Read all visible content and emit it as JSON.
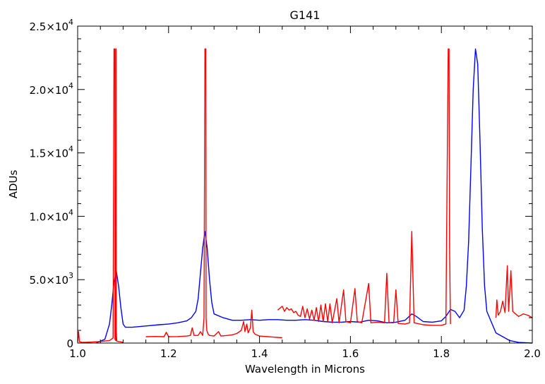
{
  "chart_data": {
    "type": "line",
    "title": "G141",
    "xlabel": "Wavelength in Microns",
    "ylabel": "ADUs",
    "xlim": [
      1.0,
      2.0
    ],
    "ylim": [
      0,
      25000
    ],
    "grid": false,
    "legend": "none",
    "x_ticks": [
      {
        "value": 1.0,
        "label": "1.0"
      },
      {
        "value": 1.2,
        "label": "1.2"
      },
      {
        "value": 1.4,
        "label": "1.4"
      },
      {
        "value": 1.6,
        "label": "1.6"
      },
      {
        "value": 1.8,
        "label": "1.8"
      },
      {
        "value": 2.0,
        "label": "2.0"
      }
    ],
    "y_ticks": [
      {
        "value": 0,
        "label": "0"
      },
      {
        "value": 5000,
        "mantissa": "5.0",
        "base": "×10",
        "exp": "3"
      },
      {
        "value": 10000,
        "mantissa": "1.0",
        "base": "×10",
        "exp": "4"
      },
      {
        "value": 15000,
        "mantissa": "1.5",
        "base": "×10",
        "exp": "4"
      },
      {
        "value": 20000,
        "mantissa": "2.0",
        "base": "×10",
        "exp": "4"
      },
      {
        "value": 25000,
        "mantissa": "2.5",
        "base": "×10",
        "exp": "4"
      }
    ],
    "series": [
      {
        "color": "#0000ff",
        "points": [
          [
            1.04,
            0
          ],
          [
            1.06,
            300
          ],
          [
            1.07,
            1500
          ],
          [
            1.075,
            3000
          ],
          [
            1.08,
            4800
          ],
          [
            1.085,
            5700
          ],
          [
            1.09,
            4500
          ],
          [
            1.095,
            2800
          ],
          [
            1.1,
            1500
          ],
          [
            1.105,
            1250
          ],
          [
            1.12,
            1250
          ],
          [
            1.15,
            1350
          ],
          [
            1.18,
            1450
          ],
          [
            1.2,
            1500
          ],
          [
            1.22,
            1600
          ],
          [
            1.24,
            1750
          ],
          [
            1.25,
            2000
          ],
          [
            1.26,
            2500
          ],
          [
            1.265,
            3500
          ],
          [
            1.27,
            5500
          ],
          [
            1.275,
            7500
          ],
          [
            1.28,
            8800
          ],
          [
            1.285,
            7500
          ],
          [
            1.29,
            5000
          ],
          [
            1.295,
            3200
          ],
          [
            1.3,
            2300
          ],
          [
            1.32,
            2000
          ],
          [
            1.34,
            1800
          ],
          [
            1.36,
            1800
          ],
          [
            1.38,
            1850
          ],
          [
            1.4,
            1800
          ],
          [
            1.42,
            1850
          ],
          [
            1.44,
            1850
          ],
          [
            1.46,
            1800
          ],
          [
            1.48,
            1800
          ],
          [
            1.5,
            1850
          ],
          [
            1.52,
            1800
          ],
          [
            1.54,
            1700
          ],
          [
            1.56,
            1650
          ],
          [
            1.58,
            1650
          ],
          [
            1.6,
            1700
          ],
          [
            1.62,
            1650
          ],
          [
            1.64,
            1800
          ],
          [
            1.66,
            1750
          ],
          [
            1.68,
            1600
          ],
          [
            1.7,
            1650
          ],
          [
            1.72,
            1800
          ],
          [
            1.735,
            2300
          ],
          [
            1.745,
            2100
          ],
          [
            1.76,
            1700
          ],
          [
            1.78,
            1650
          ],
          [
            1.8,
            1750
          ],
          [
            1.81,
            2100
          ],
          [
            1.82,
            2650
          ],
          [
            1.83,
            2500
          ],
          [
            1.84,
            2000
          ],
          [
            1.85,
            2600
          ],
          [
            1.855,
            4500
          ],
          [
            1.86,
            8000
          ],
          [
            1.865,
            14000
          ],
          [
            1.87,
            20000
          ],
          [
            1.875,
            23200
          ],
          [
            1.88,
            22000
          ],
          [
            1.885,
            16000
          ],
          [
            1.89,
            9000
          ],
          [
            1.895,
            4500
          ],
          [
            1.9,
            2500
          ],
          [
            1.92,
            800
          ],
          [
            1.95,
            200
          ],
          [
            1.97,
            50
          ],
          [
            2.0,
            0
          ]
        ]
      },
      {
        "color": "#ff0000",
        "points": [
          [
            1.0,
            100
          ],
          [
            1.002,
            900
          ],
          [
            1.004,
            100
          ],
          [
            1.01,
            50
          ],
          [
            1.03,
            80
          ],
          [
            1.05,
            120
          ],
          [
            1.07,
            200
          ],
          [
            1.078,
            400
          ],
          [
            1.08,
            23200
          ],
          [
            1.082,
            23200
          ],
          [
            1.0822,
            300
          ],
          [
            1.084,
            200
          ],
          [
            1.0845,
            23200
          ],
          [
            1.085,
            1000
          ],
          [
            1.086,
            150
          ],
          [
            1.1,
            60
          ]
        ]
      },
      {
        "color": "#ff0000",
        "points": [
          [
            1.15,
            500
          ],
          [
            1.17,
            520
          ],
          [
            1.19,
            500
          ],
          [
            1.195,
            850
          ],
          [
            1.2,
            500
          ],
          [
            1.22,
            510
          ],
          [
            1.24,
            550
          ],
          [
            1.248,
            600
          ],
          [
            1.252,
            1200
          ],
          [
            1.256,
            600
          ],
          [
            1.265,
            600
          ],
          [
            1.27,
            900
          ],
          [
            1.275,
            600
          ],
          [
            1.278,
            2000
          ],
          [
            1.28,
            23200
          ],
          [
            1.282,
            23200
          ],
          [
            1.2825,
            2000
          ],
          [
            1.284,
            1000
          ],
          [
            1.287,
            700
          ],
          [
            1.29,
            600
          ],
          [
            1.3,
            550
          ],
          [
            1.31,
            900
          ],
          [
            1.315,
            550
          ],
          [
            1.33,
            600
          ],
          [
            1.34,
            650
          ],
          [
            1.35,
            750
          ],
          [
            1.36,
            1000
          ],
          [
            1.365,
            1700
          ],
          [
            1.368,
            900
          ],
          [
            1.372,
            1500
          ],
          [
            1.375,
            800
          ],
          [
            1.38,
            1200
          ],
          [
            1.383,
            2600
          ],
          [
            1.386,
            900
          ],
          [
            1.39,
            700
          ],
          [
            1.4,
            550
          ],
          [
            1.42,
            500
          ],
          [
            1.45,
            420
          ]
        ]
      },
      {
        "color": "#ff0000",
        "points": [
          [
            1.44,
            2600
          ],
          [
            1.45,
            2900
          ],
          [
            1.455,
            2500
          ],
          [
            1.46,
            2800
          ],
          [
            1.465,
            2600
          ],
          [
            1.47,
            2700
          ],
          [
            1.475,
            2400
          ],
          [
            1.48,
            2500
          ],
          [
            1.485,
            2200
          ],
          [
            1.49,
            2100
          ],
          [
            1.495,
            2900
          ],
          [
            1.5,
            2000
          ],
          [
            1.505,
            2700
          ],
          [
            1.51,
            1900
          ],
          [
            1.515,
            2600
          ],
          [
            1.52,
            1800
          ],
          [
            1.525,
            2800
          ],
          [
            1.53,
            1700
          ],
          [
            1.535,
            3000
          ],
          [
            1.54,
            1700
          ],
          [
            1.545,
            3100
          ],
          [
            1.55,
            1700
          ],
          [
            1.555,
            3100
          ],
          [
            1.56,
            1600
          ],
          [
            1.57,
            3500
          ],
          [
            1.575,
            1600
          ],
          [
            1.585,
            4200
          ],
          [
            1.59,
            1700
          ],
          [
            1.6,
            1600
          ],
          [
            1.61,
            4300
          ],
          [
            1.615,
            1700
          ],
          [
            1.625,
            1600
          ],
          [
            1.64,
            4700
          ],
          [
            1.645,
            1600
          ],
          [
            1.66,
            1650
          ],
          [
            1.675,
            1600
          ],
          [
            1.68,
            5500
          ],
          [
            1.685,
            1600
          ],
          [
            1.695,
            1600
          ],
          [
            1.7,
            4200
          ],
          [
            1.705,
            1550
          ],
          [
            1.72,
            1500
          ],
          [
            1.73,
            1600
          ],
          [
            1.735,
            8800
          ],
          [
            1.74,
            1600
          ],
          [
            1.76,
            1450
          ],
          [
            1.78,
            1400
          ],
          [
            1.8,
            1400
          ],
          [
            1.81,
            1500
          ],
          [
            1.815,
            23200
          ],
          [
            1.817,
            23200
          ],
          [
            1.818,
            7500
          ],
          [
            1.82,
            1500
          ]
        ]
      },
      {
        "color": "#ff0000",
        "points": [
          [
            1.92,
            2000
          ],
          [
            1.922,
            3400
          ],
          [
            1.925,
            2200
          ],
          [
            1.93,
            2500
          ],
          [
            1.935,
            3300
          ],
          [
            1.94,
            2400
          ],
          [
            1.945,
            6100
          ],
          [
            1.948,
            2500
          ],
          [
            1.953,
            5700
          ],
          [
            1.957,
            2500
          ],
          [
            1.96,
            2400
          ],
          [
            1.97,
            2100
          ],
          [
            1.98,
            2300
          ],
          [
            1.99,
            2200
          ],
          [
            2.0,
            2000
          ]
        ]
      }
    ]
  }
}
